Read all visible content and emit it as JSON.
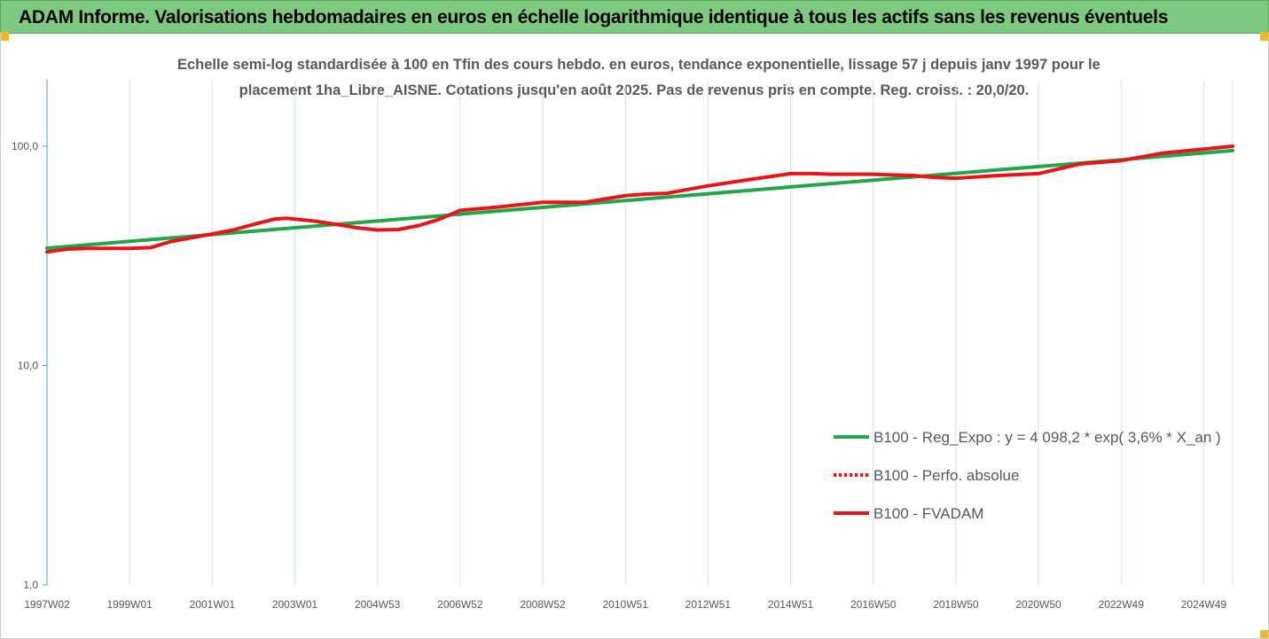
{
  "header": {
    "title": "ADAM Informe. Valorisations hebdomadaires en euros en échelle logarithmique identique à tous les actifs sans les revenus éventuels"
  },
  "chart_data": {
    "type": "line",
    "title_line1": "Echelle semi-log standardisée à 100 en Tfin des cours hebdo. en euros, tendance exponentielle, lissage 57 j depuis janv 1997 pour le",
    "title_line2": "placement 1ha_Libre_AISNE. Cotations jusqu'en août 2025. Pas de revenus pris en compte. Reg. croiss. : 20,0/20.",
    "y_scale": "log",
    "ylim": [
      1,
      200
    ],
    "y_ticks": [
      {
        "value": 100,
        "label": "100,0"
      },
      {
        "value": 10,
        "label": "10,0"
      },
      {
        "value": 1,
        "label": "1,0"
      }
    ],
    "x_range": [
      1997.0,
      2025.7
    ],
    "x_ticks": [
      {
        "x": 1997.0,
        "label": "1997W02"
      },
      {
        "x": 1999.0,
        "label": "1999W01"
      },
      {
        "x": 2001.0,
        "label": "2001W01"
      },
      {
        "x": 2003.0,
        "label": "2003W01"
      },
      {
        "x": 2005.0,
        "label": "2004W53"
      },
      {
        "x": 2007.0,
        "label": "2006W52"
      },
      {
        "x": 2009.0,
        "label": "2008W52"
      },
      {
        "x": 2011.0,
        "label": "2010W51"
      },
      {
        "x": 2013.0,
        "label": "2012W51"
      },
      {
        "x": 2015.0,
        "label": "2014W51"
      },
      {
        "x": 2017.0,
        "label": "2016W50"
      },
      {
        "x": 2019.0,
        "label": "2018W50"
      },
      {
        "x": 2021.0,
        "label": "2020W50"
      },
      {
        "x": 2023.0,
        "label": "2022W49"
      },
      {
        "x": 2025.0,
        "label": "2024W49"
      }
    ],
    "grid": "vertical",
    "legend_position": "bottom-right",
    "series": [
      {
        "name": "B100 - Reg_Expo : y = 4 098,2 * exp( 3,6% *  X_an )",
        "color": "#1fa84a",
        "style": "solid",
        "x": [
          1997.0,
          2025.7
        ],
        "y": [
          34.3,
          95.5
        ]
      },
      {
        "name": "B100 - Perfo. absolue",
        "color": "#e8141a",
        "style": "dotted",
        "x": [],
        "y": []
      },
      {
        "name": "B100 - FVADAM",
        "color": "#e8141a",
        "style": "solid",
        "x": [
          1997.0,
          1997.5,
          1998.0,
          1999.0,
          1999.5,
          2000.0,
          2001.0,
          2001.5,
          2002.0,
          2002.5,
          2002.8,
          2003.5,
          2004.0,
          2004.5,
          2005.0,
          2005.5,
          2006.0,
          2006.5,
          2007.0,
          2008.0,
          2009.0,
          2009.5,
          2010.0,
          2010.5,
          2011.0,
          2011.5,
          2012.0,
          2013.0,
          2014.0,
          2015.0,
          2015.5,
          2016.0,
          2017.0,
          2017.5,
          2018.0,
          2018.5,
          2019.0,
          2020.0,
          2021.0,
          2022.0,
          2023.0,
          2024.0,
          2025.0,
          2025.7
        ],
        "y": [
          33.0,
          34.0,
          34.2,
          34.2,
          34.5,
          36.8,
          39.8,
          41.5,
          44.0,
          46.5,
          47.0,
          45.5,
          44.0,
          42.5,
          41.5,
          41.7,
          43.5,
          46.5,
          51.0,
          53.0,
          55.5,
          55.5,
          55.5,
          57.5,
          59.5,
          60.5,
          61.0,
          66.0,
          70.5,
          75.0,
          75.0,
          74.5,
          74.5,
          74.0,
          73.5,
          72.0,
          71.5,
          73.5,
          75.0,
          83.0,
          86.0,
          93.0,
          97.0,
          100.0
        ]
      }
    ]
  }
}
